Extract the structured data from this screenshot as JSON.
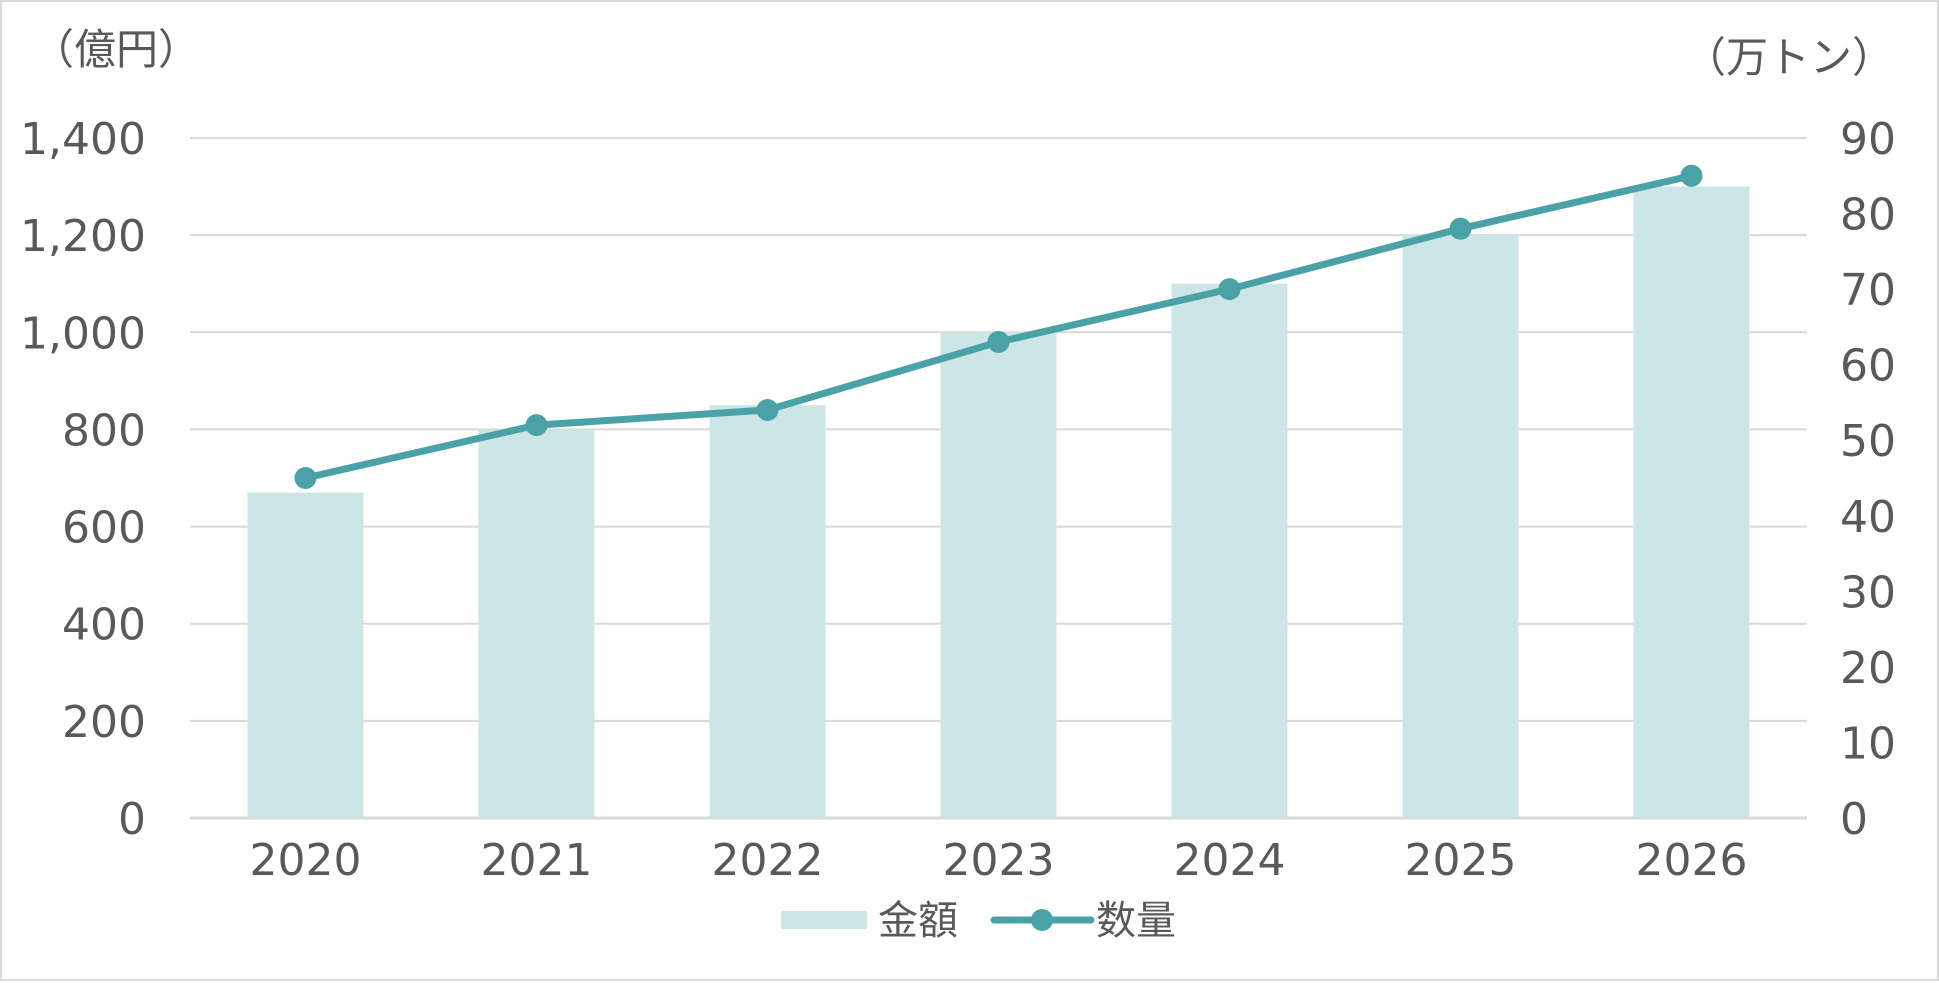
{
  "chart_data": {
    "type": "bar",
    "categories": [
      "2020",
      "2021",
      "2022",
      "2023",
      "2024",
      "2025",
      "2026"
    ],
    "series": [
      {
        "name": "金額",
        "type": "bar",
        "axis": "left",
        "values": [
          670,
          800,
          850,
          1000,
          1100,
          1200,
          1300
        ],
        "color": "#cce6e8"
      },
      {
        "name": "数量",
        "type": "line",
        "axis": "right",
        "values": [
          45,
          52,
          54,
          63,
          70,
          78,
          85
        ],
        "color": "#4aa1a6"
      }
    ],
    "y_left": {
      "unit_label": "（億円）",
      "ticks": [
        "0",
        "200",
        "400",
        "600",
        "800",
        "1,000",
        "1,200",
        "1,400"
      ],
      "ylim": [
        0,
        1400
      ]
    },
    "y_right": {
      "unit_label": "（万トン）",
      "ticks": [
        "0",
        "10",
        "20",
        "30",
        "40",
        "50",
        "60",
        "70",
        "80",
        "90"
      ],
      "ylim": [
        0,
        90
      ]
    },
    "grid": true,
    "legend_position": "bottom-center",
    "colors": {
      "grid": "#d9d9d9",
      "text": "#595959",
      "bar": "#cce6e8",
      "line": "#4aa1a6"
    }
  }
}
